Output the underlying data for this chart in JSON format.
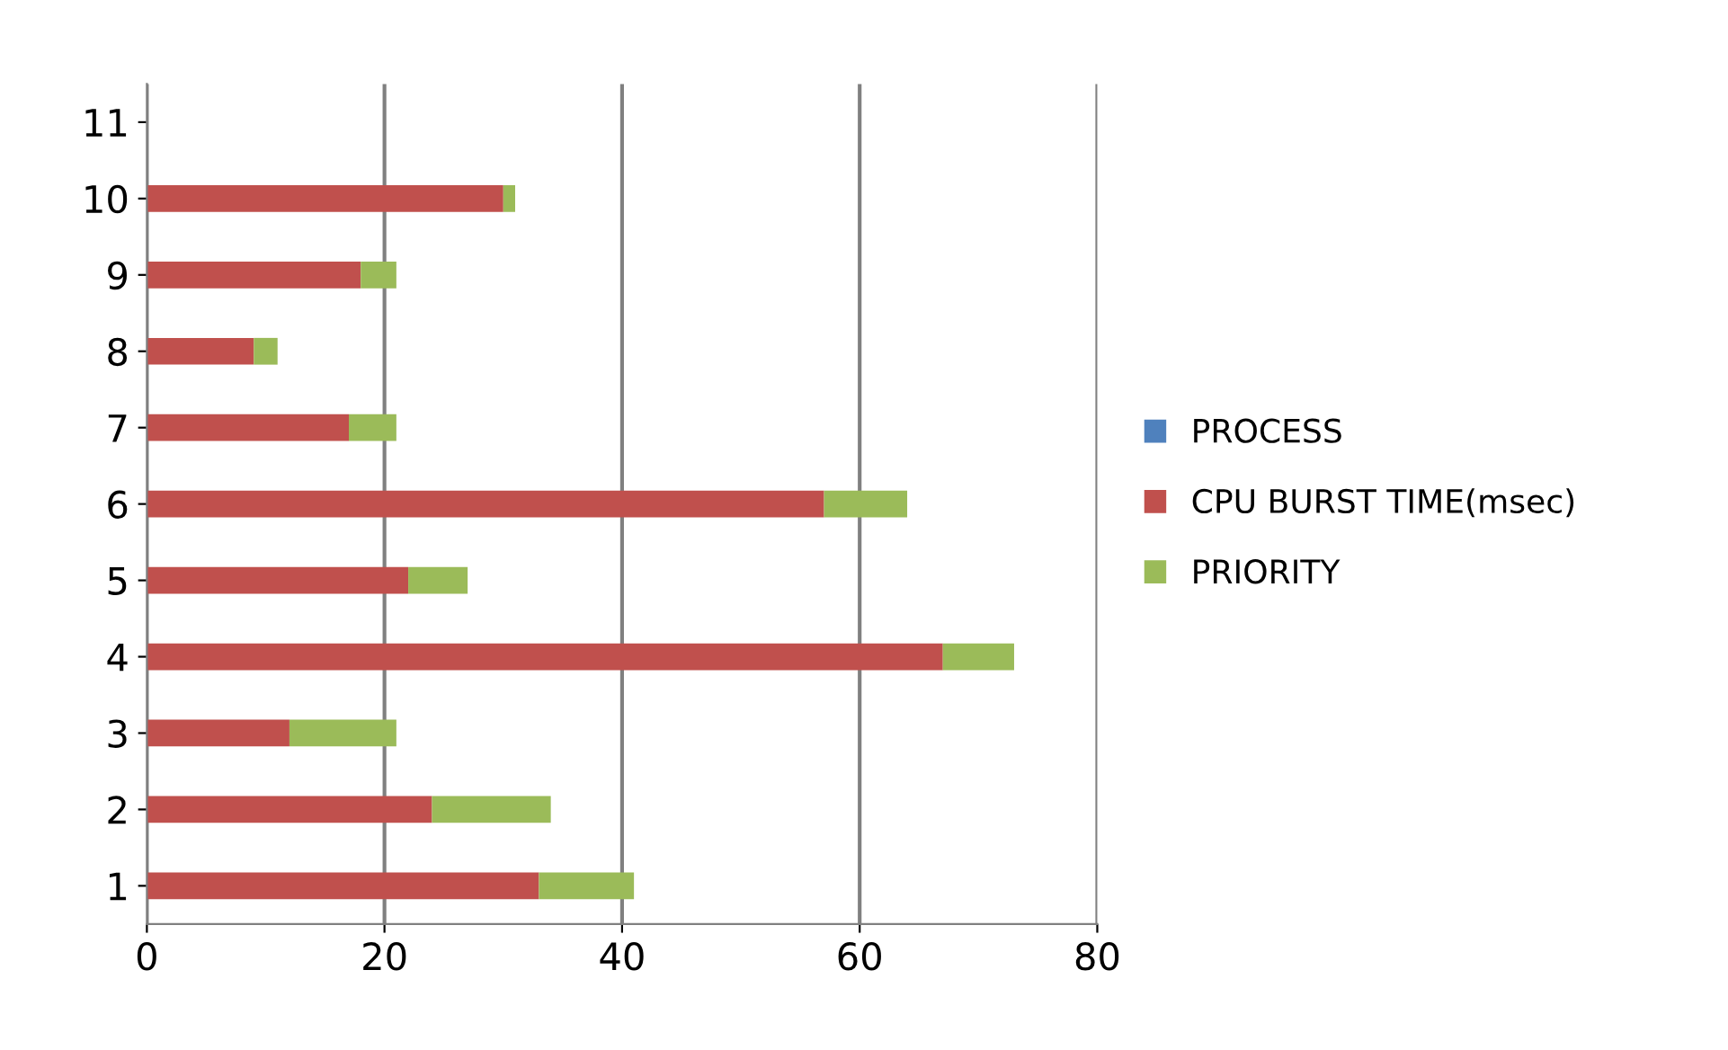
{
  "chart_data": {
    "type": "bar",
    "orientation": "horizontal",
    "stacked": true,
    "categories": [
      "11",
      "10",
      "9",
      "8",
      "7",
      "6",
      "5",
      "4",
      "3",
      "2",
      "1"
    ],
    "series": [
      {
        "name": "PROCESS",
        "color": "#4f81bd",
        "values": [
          null,
          null,
          null,
          null,
          null,
          null,
          null,
          null,
          null,
          null,
          null
        ]
      },
      {
        "name": "CPU BURST TIME(msec)",
        "color": "#c0504d",
        "values": [
          null,
          30,
          18,
          9,
          17,
          57,
          22,
          67,
          12,
          24,
          33
        ]
      },
      {
        "name": "PRIORITY",
        "color": "#9bbb59",
        "values": [
          null,
          1,
          3,
          2,
          4,
          7,
          5,
          6,
          9,
          10,
          8
        ]
      }
    ],
    "xlim": [
      0,
      80
    ],
    "xticks": [
      0,
      20,
      40,
      60,
      80
    ],
    "grid": "x",
    "legend": "right"
  }
}
